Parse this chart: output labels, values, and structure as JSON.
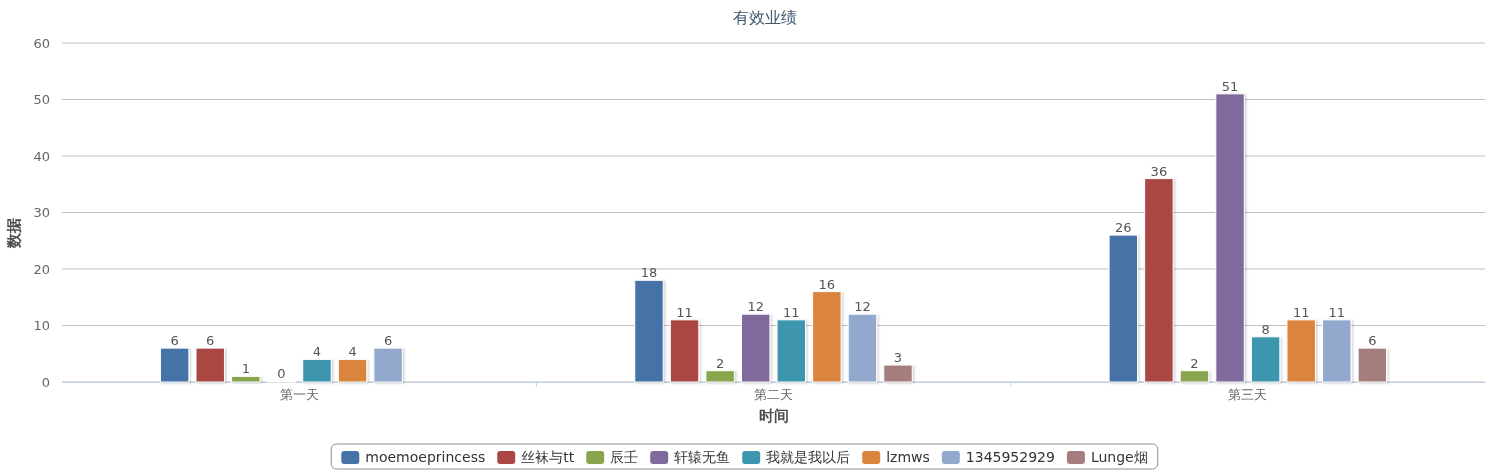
{
  "chart_data": {
    "type": "bar",
    "title": "有效业绩",
    "xlabel": "时间",
    "ylabel": "数据",
    "categories": [
      "第一天",
      "第二天",
      "第三天"
    ],
    "series": [
      {
        "name": "moemoeprincess",
        "color": "#4572a7",
        "values": [
          6,
          18,
          26
        ]
      },
      {
        "name": "丝袜与tt",
        "color": "#aa4643",
        "values": [
          6,
          11,
          36
        ]
      },
      {
        "name": "辰壬",
        "color": "#89a54e",
        "values": [
          1,
          2,
          2
        ]
      },
      {
        "name": "轩辕无鱼",
        "color": "#80699b",
        "values": [
          0,
          12,
          51
        ]
      },
      {
        "name": "我就是我以后",
        "color": "#3d96ae",
        "values": [
          4,
          11,
          8
        ]
      },
      {
        "name": "lzmws",
        "color": "#db843d",
        "values": [
          4,
          16,
          11
        ]
      },
      {
        "name": "1345952929",
        "color": "#92a8cd",
        "values": [
          6,
          12,
          11
        ]
      },
      {
        "name": "Lunge烟",
        "color": "#a47d7c",
        "values": [
          null,
          3,
          6
        ]
      }
    ],
    "ylim": [
      0,
      60
    ],
    "yticks": [
      0,
      10,
      20,
      30,
      40,
      50,
      60
    ],
    "grid": "y",
    "legend": "bottom",
    "data_labels": true
  }
}
